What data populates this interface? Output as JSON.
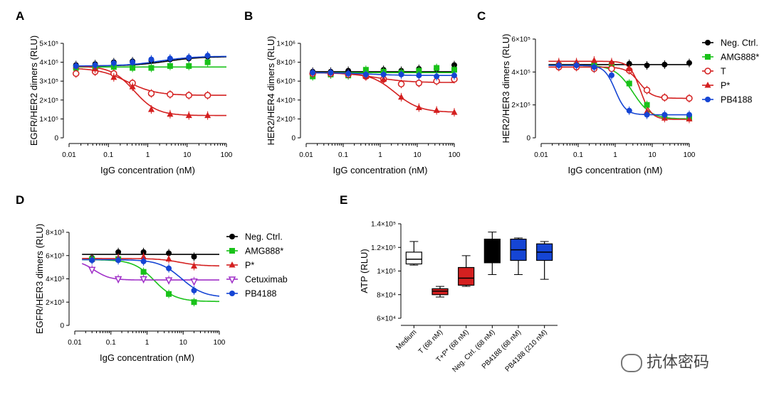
{
  "colors": {
    "black": "#000000",
    "green": "#19c219",
    "red": "#d42020",
    "magenta": "#a030c8",
    "blue": "#1545d4"
  },
  "watermark": "抗体密码",
  "chart_data": [
    {
      "panel": "A",
      "type": "line",
      "xscale": "log",
      "xlabel": "IgG concentration (nM)",
      "ylabel": "EGFR/HER2 dimers (RLU)",
      "xlim": [
        0.01,
        100
      ],
      "ylim": [
        0,
        500000
      ],
      "xticks": [
        0.01,
        0.1,
        1,
        10,
        100
      ],
      "xtick_labels": [
        "0.01",
        "0.1",
        "1",
        "10",
        "100"
      ],
      "yticks": [
        0,
        100000,
        200000,
        300000,
        400000,
        500000
      ],
      "ytick_labels": [
        "0",
        "1×10⁵",
        "2×10⁵",
        "3×10⁵",
        "4×10⁵",
        "5×10⁵"
      ],
      "legend": "top-right (shared with panels B, C)",
      "series": [
        {
          "name": "Neg. Ctrl.",
          "color": "black",
          "marker": "circle",
          "x": [
            0.015,
            0.046,
            0.137,
            0.41,
            1.23,
            3.7,
            11.1,
            33.3
          ],
          "y": [
            385000,
            390000,
            400000,
            405000,
            410000,
            415000,
            420000,
            430000
          ],
          "fit": {
            "bottom": 380000,
            "top": 430000,
            "ec50": 3.0,
            "hill": 1
          }
        },
        {
          "name": "AMG888*",
          "color": "green",
          "marker": "square",
          "x": [
            0.015,
            0.046,
            0.137,
            0.41,
            1.23,
            3.7,
            11.1,
            33.3
          ],
          "y": [
            370000,
            375000,
            375000,
            370000,
            370000,
            380000,
            380000,
            400000
          ],
          "fit": {
            "bottom": 375000,
            "top": 375000,
            "ec50": 1,
            "hill": 1
          }
        },
        {
          "name": "T",
          "color": "red",
          "marker": "open-circle",
          "x": [
            0.015,
            0.046,
            0.137,
            0.41,
            1.23,
            3.7,
            11.1,
            33.3
          ],
          "y": [
            340000,
            350000,
            340000,
            290000,
            235000,
            230000,
            225000,
            225000
          ],
          "fit": {
            "bottom": 225000,
            "top": 370000,
            "ec50": 0.3,
            "hill": -1.2
          }
        },
        {
          "name": "P*",
          "color": "red",
          "marker": "triangle",
          "x": [
            0.015,
            0.046,
            0.137,
            0.41,
            1.23,
            3.7,
            11.1,
            33.3
          ],
          "y": [
            380000,
            365000,
            320000,
            270000,
            150000,
            125000,
            118000,
            118000
          ],
          "fit": {
            "bottom": 118000,
            "top": 380000,
            "ec50": 0.45,
            "hill": -1.5
          }
        },
        {
          "name": "PB4188",
          "color": "blue",
          "marker": "circle",
          "x": [
            0.015,
            0.046,
            0.137,
            0.41,
            1.23,
            3.7,
            11.1,
            33.3
          ],
          "y": [
            380000,
            385000,
            395000,
            400000,
            415000,
            420000,
            425000,
            435000
          ],
          "fit": {
            "bottom": 380000,
            "top": 432000,
            "ec50": 2.0,
            "hill": 1
          }
        }
      ]
    },
    {
      "panel": "B",
      "type": "line",
      "xscale": "log",
      "xlabel": "IgG concentration (nM)",
      "ylabel": "HER2/HER4 dimers (RLU)",
      "xlim": [
        0.01,
        100
      ],
      "ylim": [
        0,
        1000000
      ],
      "xticks": [
        0.01,
        0.1,
        1,
        10,
        100
      ],
      "xtick_labels": [
        "0.01",
        "0.1",
        "1",
        "10",
        "100"
      ],
      "yticks": [
        0,
        200000,
        400000,
        600000,
        800000,
        1000000
      ],
      "ytick_labels": [
        "0",
        "2×10⁵",
        "4×10⁵",
        "6×10⁵",
        "8×10⁵",
        "1×10⁶"
      ],
      "series": [
        {
          "name": "Neg. Ctrl.",
          "color": "black",
          "marker": "circle",
          "x": [
            0.015,
            0.046,
            0.137,
            0.41,
            1.23,
            3.7,
            11.1,
            33.3,
            100
          ],
          "y": [
            700000,
            700000,
            710000,
            700000,
            720000,
            710000,
            730000,
            730000,
            770000
          ],
          "fit": {
            "bottom": 700000,
            "top": 700000,
            "ec50": 1,
            "hill": 1
          }
        },
        {
          "name": "AMG888*",
          "color": "green",
          "marker": "square",
          "x": [
            0.015,
            0.046,
            0.137,
            0.41,
            1.23,
            3.7,
            11.1,
            33.3,
            100
          ],
          "y": [
            650000,
            670000,
            660000,
            720000,
            700000,
            690000,
            710000,
            740000,
            720000
          ],
          "fit": {
            "bottom": 690000,
            "top": 690000,
            "ec50": 1,
            "hill": 1
          }
        },
        {
          "name": "T",
          "color": "red",
          "marker": "open-circle",
          "x": [
            0.015,
            0.046,
            0.137,
            0.41,
            1.23,
            3.7,
            11.1,
            33.3,
            100
          ],
          "y": [
            680000,
            680000,
            670000,
            650000,
            620000,
            570000,
            580000,
            600000,
            620000
          ],
          "fit": {
            "bottom": 585000,
            "top": 690000,
            "ec50": 0.8,
            "hill": -1
          }
        },
        {
          "name": "P*",
          "color": "red",
          "marker": "triangle",
          "x": [
            0.015,
            0.046,
            0.137,
            0.41,
            1.23,
            3.7,
            11.1,
            33.3,
            100
          ],
          "y": [
            690000,
            690000,
            680000,
            650000,
            620000,
            430000,
            320000,
            290000,
            270000
          ],
          "fit": {
            "bottom": 270000,
            "top": 690000,
            "ec50": 2.5,
            "hill": -1.3
          }
        },
        {
          "name": "PB4188",
          "color": "blue",
          "marker": "circle",
          "x": [
            0.015,
            0.046,
            0.137,
            0.41,
            1.23,
            3.7,
            11.1,
            33.3,
            100
          ],
          "y": [
            690000,
            690000,
            680000,
            670000,
            670000,
            670000,
            660000,
            650000,
            660000
          ],
          "fit": {
            "bottom": 660000,
            "top": 690000,
            "ec50": 0.5,
            "hill": -1
          }
        }
      ]
    },
    {
      "panel": "C",
      "type": "line",
      "xscale": "log",
      "xlabel": "IgG concentration (nM)",
      "ylabel": "HER2/HER3 dimers (RLU)",
      "xlim": [
        0.01,
        100
      ],
      "ylim": [
        0,
        600000
      ],
      "xticks": [
        0.01,
        0.1,
        1,
        10,
        100
      ],
      "xtick_labels": [
        "0.01",
        "0.1",
        "1",
        "10",
        "100"
      ],
      "yticks": [
        0,
        200000,
        400000,
        600000
      ],
      "ytick_labels": [
        "0",
        "2×10⁵",
        "4×10⁵",
        "6×10⁵"
      ],
      "legend_entries": [
        "Neg. Ctrl.",
        "AMG888*",
        "T",
        "P*",
        "PB4188"
      ],
      "series": [
        {
          "name": "Neg. Ctrl.",
          "color": "black",
          "marker": "circle",
          "x": [
            0.03,
            0.09,
            0.27,
            0.8,
            2.4,
            7.2,
            21.6,
            100
          ],
          "y": [
            445000,
            445000,
            445000,
            450000,
            450000,
            440000,
            445000,
            455000
          ],
          "fit": {
            "bottom": 445000,
            "top": 445000,
            "ec50": 1,
            "hill": 1
          }
        },
        {
          "name": "AMG888*",
          "color": "green",
          "marker": "square",
          "x": [
            0.03,
            0.09,
            0.27,
            0.8,
            2.4,
            7.2,
            21.6,
            100
          ],
          "y": [
            440000,
            440000,
            440000,
            440000,
            330000,
            200000,
            130000,
            120000
          ],
          "fit": {
            "bottom": 115000,
            "top": 440000,
            "ec50": 3.0,
            "hill": -1.8
          }
        },
        {
          "name": "T",
          "color": "red",
          "marker": "open-circle",
          "x": [
            0.03,
            0.09,
            0.27,
            0.8,
            2.4,
            7.2,
            21.6,
            100
          ],
          "y": [
            430000,
            430000,
            420000,
            420000,
            410000,
            290000,
            245000,
            240000
          ],
          "fit": {
            "bottom": 240000,
            "top": 430000,
            "ec50": 4.5,
            "hill": -2.5
          }
        },
        {
          "name": "P*",
          "color": "red",
          "marker": "triangle",
          "x": [
            0.03,
            0.09,
            0.27,
            0.8,
            2.4,
            7.2,
            21.6,
            100
          ],
          "y": [
            460000,
            460000,
            470000,
            460000,
            420000,
            160000,
            120000,
            115000
          ],
          "fit": {
            "bottom": 112000,
            "top": 465000,
            "ec50": 4.8,
            "hill": -3
          }
        },
        {
          "name": "PB4188",
          "color": "blue",
          "marker": "circle",
          "x": [
            0.03,
            0.09,
            0.27,
            0.8,
            2.4,
            7.2,
            21.6,
            100
          ],
          "y": [
            440000,
            440000,
            430000,
            380000,
            165000,
            140000,
            140000,
            140000
          ],
          "fit": {
            "bottom": 140000,
            "top": 440000,
            "ec50": 1.0,
            "hill": -3
          }
        }
      ]
    },
    {
      "panel": "D",
      "type": "line",
      "xscale": "log",
      "xlabel": "IgG concentration (nM)",
      "ylabel": "EGFR/HER3 dimers (RLU)",
      "xlim": [
        0.01,
        100
      ],
      "ylim": [
        0,
        8000
      ],
      "xticks": [
        0.01,
        0.1,
        1,
        10,
        100
      ],
      "xtick_labels": [
        "0.01",
        "0.1",
        "1",
        "10",
        "100"
      ],
      "yticks": [
        0,
        2000,
        4000,
        6000,
        8000
      ],
      "ytick_labels": [
        "0",
        "2×10³",
        "4×10³",
        "6×10³",
        "8×10³"
      ],
      "legend_entries": [
        "Neg. Ctrl.",
        "AMG888*",
        "P*",
        "Cetuximab",
        "PB4188"
      ],
      "series": [
        {
          "name": "Neg. Ctrl.",
          "color": "black",
          "marker": "circle",
          "x": [
            0.03,
            0.16,
            0.8,
            4.0,
            20
          ],
          "y": [
            5800,
            6300,
            6300,
            6200,
            5900
          ],
          "fit": {
            "bottom": 6100,
            "top": 6100,
            "ec50": 1,
            "hill": 1
          }
        },
        {
          "name": "AMG888*",
          "color": "green",
          "marker": "square",
          "x": [
            0.03,
            0.16,
            0.8,
            4.0,
            20
          ],
          "y": [
            5700,
            5700,
            4600,
            2700,
            2000
          ],
          "fit": {
            "bottom": 2050,
            "top": 5650,
            "ec50": 1.6,
            "hill": -1.5
          }
        },
        {
          "name": "P*",
          "color": "red",
          "marker": "triangle",
          "x": [
            0.03,
            0.16,
            0.8,
            4.0,
            20
          ],
          "y": [
            5700,
            5800,
            5900,
            5700,
            5100
          ],
          "fit": {
            "bottom": 5100,
            "top": 5750,
            "ec50": 8,
            "hill": -1.5
          }
        },
        {
          "name": "Cetuximab",
          "color": "magenta",
          "marker": "open-triangle-down",
          "x": [
            0.03,
            0.16,
            0.8,
            4.0,
            20
          ],
          "y": [
            4800,
            4000,
            4000,
            3900,
            3800
          ],
          "fit": {
            "bottom": 3900,
            "top": 5600,
            "ec50": 0.035,
            "hill": -2
          }
        },
        {
          "name": "PB4188",
          "color": "blue",
          "marker": "circle",
          "x": [
            0.03,
            0.16,
            0.8,
            4.0,
            20
          ],
          "y": [
            5600,
            5600,
            5500,
            4900,
            3000
          ],
          "fit": {
            "bottom": 2400,
            "top": 5650,
            "ec50": 9,
            "hill": -1.4
          }
        }
      ]
    },
    {
      "panel": "E",
      "type": "box",
      "ylabel": "ATP (RLU)",
      "ylim": [
        60000,
        140000
      ],
      "yticks": [
        60000,
        80000,
        100000,
        120000,
        140000
      ],
      "ytick_labels": [
        "6×10⁴",
        "8×10⁴",
        "1×10⁵",
        "1.2×10⁵",
        "1.4×10⁵"
      ],
      "categories": [
        "Medium",
        "T (68 nM)",
        "T+P* (68 nM)",
        "Neg. Ctrl. (68 nM)",
        "PB4188 (68 nM)",
        "PB4188 (210 nM)"
      ],
      "boxes": [
        {
          "min": 105000,
          "q1": 106000,
          "median": 110000,
          "q3": 116000,
          "max": 125000,
          "fill": "#ffffff"
        },
        {
          "min": 78000,
          "q1": 80000,
          "median": 83000,
          "q3": 85000,
          "max": 87000,
          "fill": "#d42020"
        },
        {
          "min": 87000,
          "q1": 88000,
          "median": 94000,
          "q3": 103000,
          "max": 113000,
          "fill": "#d42020"
        },
        {
          "min": 97000,
          "q1": 107000,
          "median": 118000,
          "q3": 127000,
          "max": 133000,
          "fill": "#000000"
        },
        {
          "min": 97000,
          "q1": 109000,
          "median": 118000,
          "q3": 127000,
          "max": 128000,
          "fill": "#1545d4"
        },
        {
          "min": 93000,
          "q1": 109000,
          "median": 116000,
          "q3": 123000,
          "max": 125000,
          "fill": "#1545d4"
        }
      ]
    }
  ]
}
